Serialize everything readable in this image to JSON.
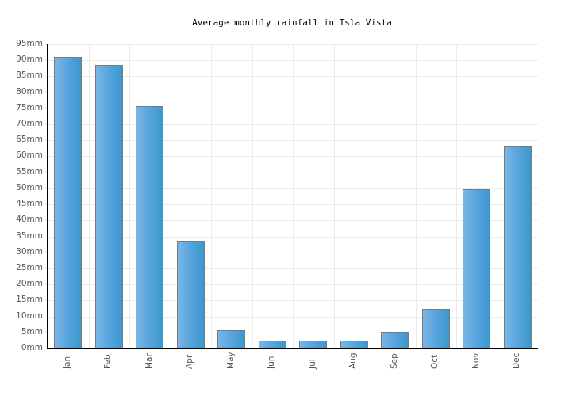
{
  "chart_data": {
    "type": "bar",
    "title": "Average monthly rainfall in Isla Vista",
    "xlabel": "",
    "ylabel": "",
    "categories": [
      "Jan",
      "Feb",
      "Mar",
      "Apr",
      "May",
      "Jun",
      "Jul",
      "Aug",
      "Sep",
      "Oct",
      "Nov",
      "Dec"
    ],
    "values": [
      91,
      88.6,
      75.7,
      33.7,
      5.7,
      2.5,
      2.5,
      2.5,
      5.2,
      12.4,
      49.7,
      63.4
    ],
    "unit": "mm",
    "ylim": [
      0,
      95
    ],
    "yticks": [
      "0mm",
      "5mm",
      "10mm",
      "15mm",
      "20mm",
      "25mm",
      "30mm",
      "35mm",
      "40mm",
      "45mm",
      "50mm",
      "55mm",
      "60mm",
      "65mm",
      "70mm",
      "75mm",
      "80mm",
      "85mm",
      "90mm",
      "95mm"
    ],
    "grid": true,
    "legend": null,
    "bar_color": "#4ea2da",
    "bar_border": "#7a7a7a"
  }
}
